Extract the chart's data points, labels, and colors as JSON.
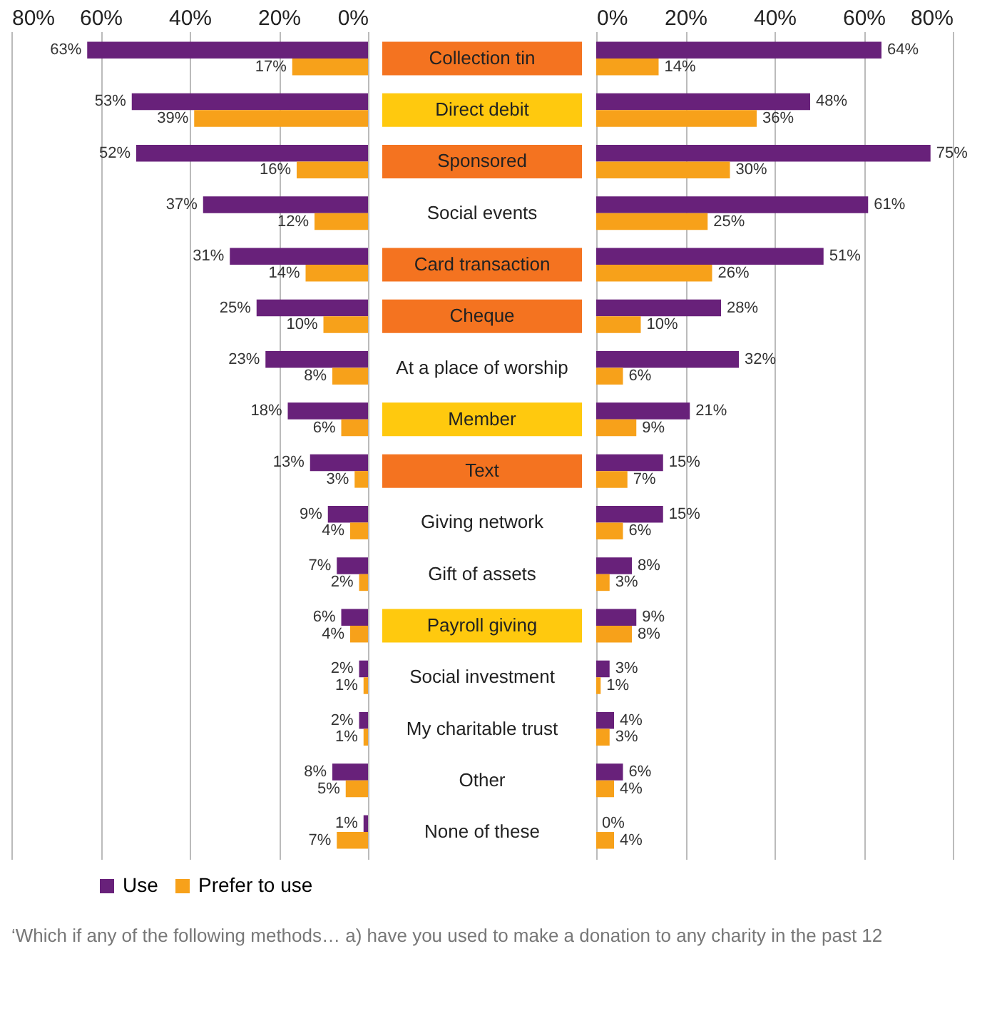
{
  "chart_data": [
    {
      "type": "bar",
      "orientation": "horizontal",
      "categories": [
        null,
        null,
        null,
        null,
        null,
        null,
        null,
        null,
        null,
        null,
        null,
        null,
        null,
        null,
        null,
        null
      ],
      "series": [
        {
          "name": "Use",
          "color": "#68217a",
          "values": [
            63,
            53,
            52,
            37,
            31,
            25,
            23,
            18,
            13,
            9,
            7,
            6,
            2,
            2,
            8,
            1
          ],
          "value_labels": [
            "63%",
            "53%",
            "52%",
            "37%",
            "31%",
            "25%",
            "23%",
            "18%",
            "13%",
            "9%",
            "7%",
            "6%",
            "2%",
            "2%",
            "8%",
            "1%"
          ]
        },
        {
          "name": "Prefer to use",
          "color": "#f7a11a",
          "values": [
            17,
            39,
            16,
            12,
            14,
            10,
            8,
            6,
            3,
            4,
            2,
            4,
            1,
            1,
            5,
            7
          ],
          "value_labels": [
            "17%",
            "39%",
            "16%",
            "12%",
            "14%",
            "10%",
            "8%",
            "6%",
            "3%",
            "4%",
            "2%",
            "4%",
            "1%",
            "1%",
            "5%",
            "7%"
          ]
        }
      ],
      "xlim": [
        80,
        0
      ],
      "xticks": [
        {
          "value": 80,
          "label": "80%"
        },
        {
          "value": 60,
          "label": "60%"
        },
        {
          "value": 40,
          "label": "40%"
        },
        {
          "value": 20,
          "label": "20%"
        },
        {
          "value": 0,
          "label": "0%"
        }
      ],
      "grid": "x",
      "legend": "bottom",
      "tick_labels": "x"
    },
    {
      "type": "other",
      "categories": [
        "Collection tin",
        "Direct debit",
        "Sponsored",
        "Social events",
        "Card transaction",
        "Cheque",
        "At a place of worship",
        "Member",
        "Text",
        "Giving network",
        "Gift of assets",
        "Payroll giving",
        "Social investment",
        "My charitable trust",
        "Other",
        "None of these"
      ],
      "colors": [
        "#f47320",
        "#ffc90e",
        "#f47320",
        null,
        "#f47320",
        "#f47320",
        null,
        "#ffc90e",
        "#f47320",
        null,
        null,
        "#ffc90e",
        null,
        null,
        null,
        null
      ]
    },
    {
      "type": "bar",
      "orientation": "horizontal",
      "categories": [
        null,
        null,
        null,
        null,
        null,
        null,
        null,
        null,
        null,
        null,
        null,
        null,
        null,
        null,
        null,
        null
      ],
      "series": [
        {
          "name": "Use",
          "color": "#68217a",
          "values": [
            64,
            48,
            75,
            61,
            51,
            28,
            32,
            21,
            15,
            15,
            8,
            9,
            3,
            4,
            6,
            0
          ],
          "value_labels": [
            "64%",
            "48%",
            "75%",
            "61%",
            "51%",
            "28%",
            "32%",
            "21%",
            "15%",
            "15%",
            "8%",
            "9%",
            "3%",
            "4%",
            "6%",
            "0%"
          ]
        },
        {
          "name": "Prefer to use",
          "color": "#f7a11a",
          "values": [
            14,
            36,
            30,
            25,
            26,
            10,
            6,
            9,
            7,
            6,
            3,
            8,
            1,
            3,
            4,
            4
          ],
          "value_labels": [
            "14%",
            "36%",
            "30%",
            "25%",
            "26%",
            "10%",
            "6%",
            "9%",
            "7%",
            "6%",
            "3%",
            "8%",
            "1%",
            "3%",
            "4%",
            "4%"
          ]
        }
      ],
      "xlim": [
        0,
        80
      ],
      "xticks": [
        {
          "value": 0,
          "label": "0%"
        },
        {
          "value": 20,
          "label": "20%"
        },
        {
          "value": 40,
          "label": "40%"
        },
        {
          "value": 60,
          "label": "60%"
        },
        {
          "value": 80,
          "label": "80%"
        }
      ],
      "grid": "x",
      "legend": "bottom",
      "tick_labels": "x",
      "annotations": [
        "‘Which if any of the following methods… a) have you used to make a donation to any charity in the past 12"
      ]
    }
  ]
}
